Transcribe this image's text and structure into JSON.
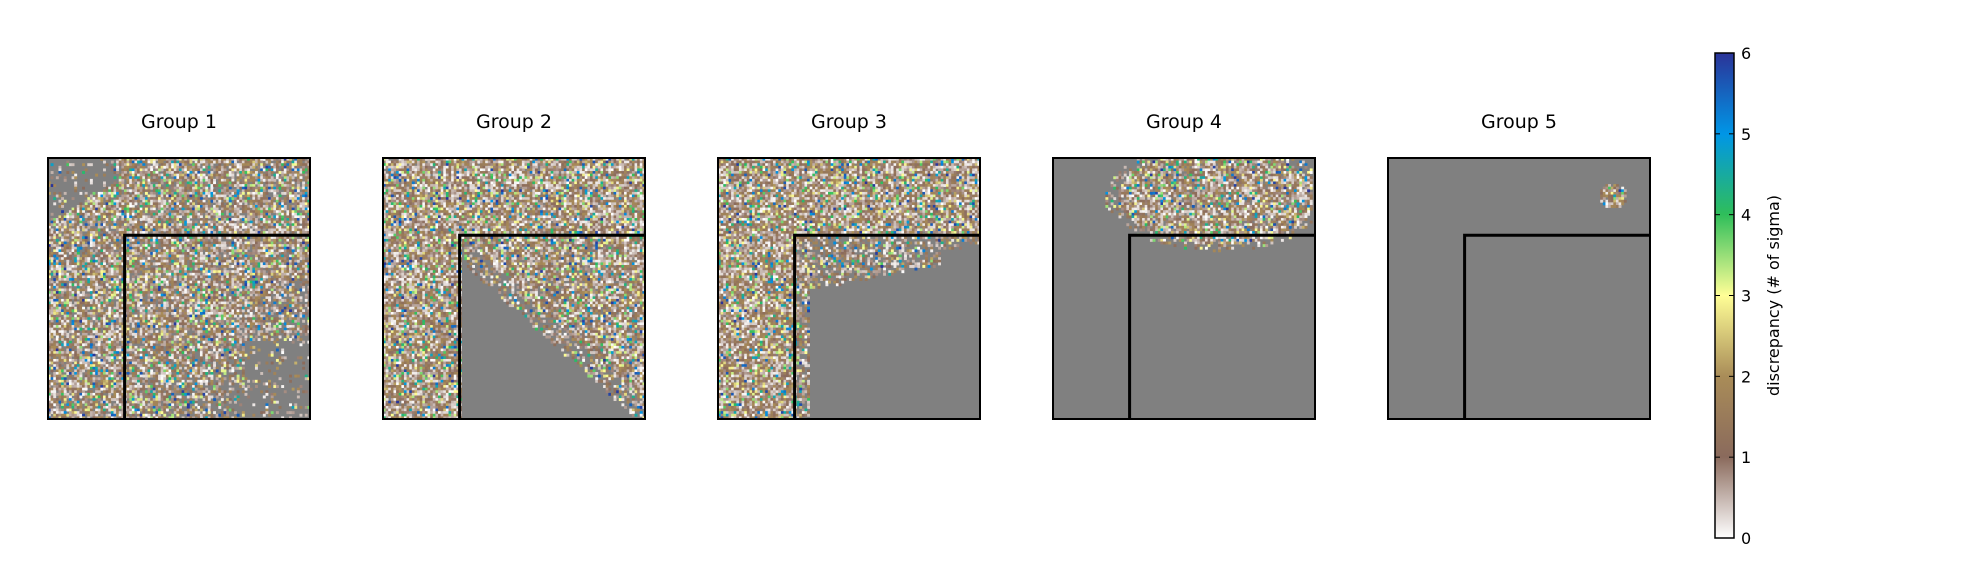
{
  "chart_data": {
    "type": "heatmap",
    "panels": [
      {
        "title": "Group 1",
        "pattern": "diagonal-spread",
        "density": 0.55
      },
      {
        "title": "Group 2",
        "pattern": "corner-band",
        "density": 0.95
      },
      {
        "title": "Group 3",
        "pattern": "L-band",
        "density": 1.0
      },
      {
        "title": "Group 4",
        "pattern": "blob-top",
        "density": 0.9
      },
      {
        "title": "Group 5",
        "pattern": "small-dot",
        "density": 0.95
      }
    ],
    "grid_size": 100,
    "masked_color": "#808080",
    "boundary": {
      "inner_corner_fraction": 0.3
    },
    "colorbar": {
      "label": "discrepancy (# of sigma)",
      "range": [
        0,
        6
      ],
      "ticks": [
        "0",
        "1",
        "2",
        "3",
        "4",
        "5",
        "6"
      ],
      "colormap": "terrain_r",
      "stops": [
        "#ffffff",
        "#8a6a5c",
        "#a98c58",
        "#fffe96",
        "#2fbe5a",
        "#0096e6",
        "#2b3398"
      ]
    }
  }
}
